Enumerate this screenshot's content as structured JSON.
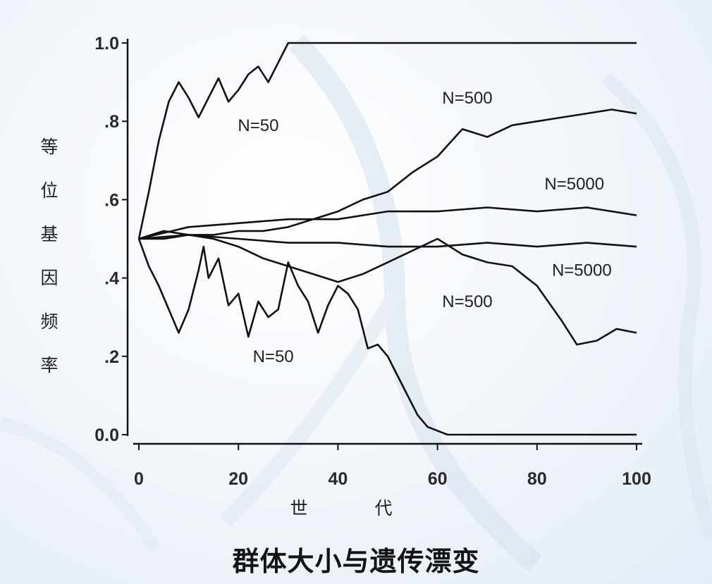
{
  "caption": "群体大小与遗传漂变",
  "chart_data": {
    "type": "line",
    "xlabel": "世代",
    "ylabel": "等位基因频率",
    "xlim": [
      0,
      100
    ],
    "ylim": [
      0,
      1
    ],
    "x_ticks": [
      0,
      20,
      40,
      60,
      80,
      100
    ],
    "x_tick_labels": [
      "0",
      "20",
      "40",
      "60",
      "80",
      "100"
    ],
    "y_ticks": [
      0,
      0.2,
      0.4,
      0.6,
      0.8,
      1.0
    ],
    "y_tick_labels": [
      "0.0",
      ".2",
      ".4",
      ".6",
      ".8",
      "1.0"
    ],
    "grid": false,
    "legend": "none",
    "line_color": "#111111",
    "series": [
      {
        "name": "N=50",
        "x": [
          0,
          2,
          4,
          6,
          8,
          10,
          12,
          14,
          16,
          18,
          20,
          22,
          24,
          26,
          28,
          30,
          100
        ],
        "values": [
          0.5,
          0.62,
          0.75,
          0.85,
          0.9,
          0.86,
          0.81,
          0.86,
          0.91,
          0.85,
          0.88,
          0.92,
          0.94,
          0.9,
          0.95,
          1.0,
          1.0
        ]
      },
      {
        "name": "N=500",
        "x": [
          0,
          5,
          10,
          15,
          20,
          25,
          30,
          35,
          40,
          45,
          50,
          55,
          60,
          65,
          70,
          75,
          80,
          85,
          90,
          95,
          100
        ],
        "values": [
          0.5,
          0.5,
          0.51,
          0.51,
          0.52,
          0.52,
          0.53,
          0.55,
          0.57,
          0.6,
          0.62,
          0.67,
          0.71,
          0.78,
          0.76,
          0.79,
          0.8,
          0.81,
          0.82,
          0.83,
          0.82
        ]
      },
      {
        "name": "N=5000",
        "x": [
          0,
          10,
          20,
          30,
          40,
          50,
          60,
          70,
          80,
          90,
          100
        ],
        "values": [
          0.5,
          0.53,
          0.54,
          0.55,
          0.55,
          0.57,
          0.57,
          0.58,
          0.57,
          0.58,
          0.56
        ]
      },
      {
        "name": "N=5000",
        "x": [
          0,
          10,
          20,
          30,
          40,
          50,
          60,
          70,
          80,
          90,
          100
        ],
        "values": [
          0.5,
          0.51,
          0.5,
          0.49,
          0.49,
          0.48,
          0.48,
          0.49,
          0.48,
          0.49,
          0.48
        ]
      },
      {
        "name": "N=500",
        "x": [
          0,
          5,
          10,
          15,
          20,
          25,
          30,
          35,
          40,
          45,
          50,
          55,
          60,
          65,
          70,
          75,
          80,
          85,
          88,
          92,
          96,
          100
        ],
        "values": [
          0.5,
          0.52,
          0.51,
          0.5,
          0.48,
          0.45,
          0.43,
          0.41,
          0.39,
          0.41,
          0.44,
          0.47,
          0.5,
          0.46,
          0.44,
          0.43,
          0.38,
          0.29,
          0.23,
          0.24,
          0.27,
          0.26
        ]
      },
      {
        "name": "N=50",
        "x": [
          0,
          2,
          4,
          6,
          8,
          10,
          12,
          13,
          14,
          16,
          18,
          20,
          22,
          24,
          26,
          28,
          30,
          32,
          34,
          36,
          38,
          40,
          42,
          44,
          46,
          48,
          50,
          52,
          54,
          56,
          58,
          60,
          62,
          100
        ],
        "values": [
          0.5,
          0.43,
          0.38,
          0.32,
          0.26,
          0.32,
          0.42,
          0.48,
          0.4,
          0.45,
          0.33,
          0.36,
          0.25,
          0.34,
          0.3,
          0.32,
          0.44,
          0.38,
          0.34,
          0.26,
          0.33,
          0.38,
          0.36,
          0.32,
          0.22,
          0.23,
          0.2,
          0.15,
          0.1,
          0.05,
          0.02,
          0.01,
          0.0,
          0.0
        ]
      }
    ],
    "annotations": [
      {
        "text": "N=50",
        "x": 24,
        "y": 0.79
      },
      {
        "text": "N=500",
        "x": 66,
        "y": 0.86
      },
      {
        "text": "N=5000",
        "x": 87.5,
        "y": 0.64
      },
      {
        "text": "N=5000",
        "x": 89,
        "y": 0.42
      },
      {
        "text": "N=500",
        "x": 66,
        "y": 0.34
      },
      {
        "text": "N=50",
        "x": 27,
        "y": 0.2
      }
    ]
  }
}
